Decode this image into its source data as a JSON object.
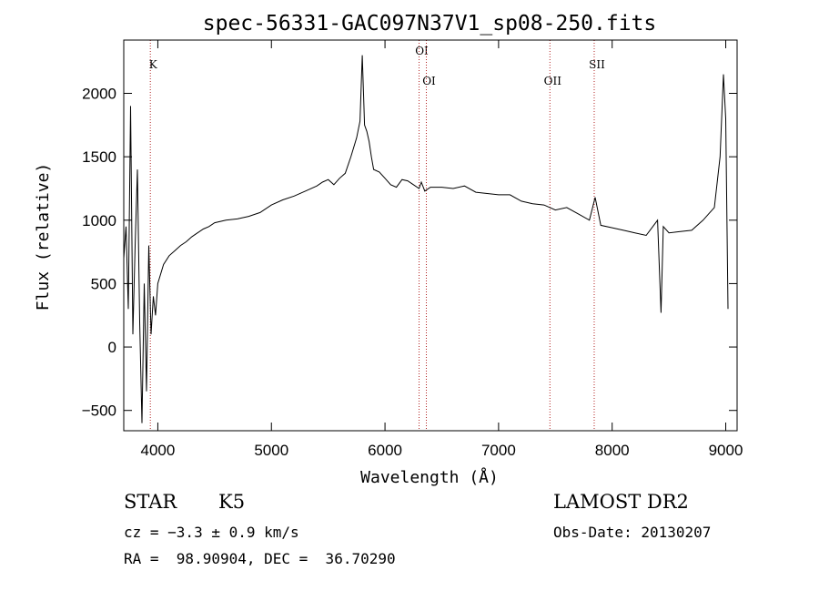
{
  "chart_data": {
    "type": "line",
    "title": "spec-56331-GAC097N37V1_sp08-250.fits",
    "xlabel": "Wavelength (Å)",
    "ylabel": "Flux (relative)",
    "xlim": [
      3700,
      9100
    ],
    "ylim": [
      -660,
      2420
    ],
    "xticks": [
      4000,
      5000,
      6000,
      7000,
      8000,
      9000
    ],
    "yticks": [
      -500,
      0,
      500,
      1000,
      1500,
      2000
    ],
    "grid": false,
    "line_color": "#000000",
    "marker_color": "#b22222",
    "line_markers": [
      {
        "label": "K",
        "x": 3934
      },
      {
        "label": "OI",
        "x": 6300
      },
      {
        "label": "OI",
        "x": 6364
      },
      {
        "label": "OII",
        "x": 7452
      },
      {
        "label": "SII",
        "x": 7842
      }
    ],
    "series": [
      {
        "x": [
          3700,
          3720,
          3740,
          3760,
          3780,
          3800,
          3820,
          3840,
          3860,
          3880,
          3900,
          3920,
          3940,
          3960,
          3980,
          4000,
          4050,
          4100,
          4150,
          4200,
          4250,
          4300,
          4350,
          4400,
          4450,
          4500,
          4600,
          4700,
          4800,
          4900,
          5000,
          5100,
          5200,
          5300,
          5400,
          5450,
          5500,
          5550,
          5600,
          5650,
          5700,
          5750,
          5780,
          5800,
          5820,
          5840,
          5860,
          5880,
          5900,
          5950,
          6000,
          6050,
          6100,
          6150,
          6200,
          6250,
          6300,
          6320,
          6350,
          6400,
          6500,
          6600,
          6700,
          6800,
          6900,
          7000,
          7100,
          7200,
          7300,
          7400,
          7500,
          7600,
          7700,
          7800,
          7850,
          7900,
          8000,
          8100,
          8200,
          8300,
          8400,
          8430,
          8450,
          8500,
          8600,
          8700,
          8800,
          8850,
          8900,
          8950,
          8980,
          9000,
          9020
        ],
        "y": [
          700,
          950,
          300,
          1900,
          100,
          800,
          1400,
          200,
          -600,
          500,
          -350,
          800,
          100,
          400,
          250,
          500,
          650,
          720,
          760,
          800,
          830,
          870,
          900,
          930,
          950,
          980,
          1000,
          1010,
          1030,
          1060,
          1120,
          1160,
          1190,
          1230,
          1270,
          1300,
          1320,
          1280,
          1330,
          1370,
          1500,
          1650,
          1780,
          2300,
          1750,
          1700,
          1620,
          1500,
          1400,
          1380,
          1330,
          1280,
          1260,
          1320,
          1310,
          1280,
          1250,
          1300,
          1230,
          1260,
          1260,
          1250,
          1270,
          1220,
          1210,
          1200,
          1200,
          1150,
          1130,
          1120,
          1080,
          1100,
          1050,
          1000,
          1180,
          960,
          940,
          920,
          900,
          880,
          1000,
          270,
          950,
          900,
          910,
          920,
          1000,
          1050,
          1100,
          1500,
          2150,
          1800,
          300
        ]
      }
    ]
  },
  "info": {
    "object_class": "STAR",
    "subclass": "K5",
    "survey": "LAMOST DR2",
    "cz": "cz = −3.3 ± 0.9 km/s",
    "obs_date": "Obs-Date: 20130207",
    "coords": "RA =  98.90904, DEC =  36.70290"
  }
}
